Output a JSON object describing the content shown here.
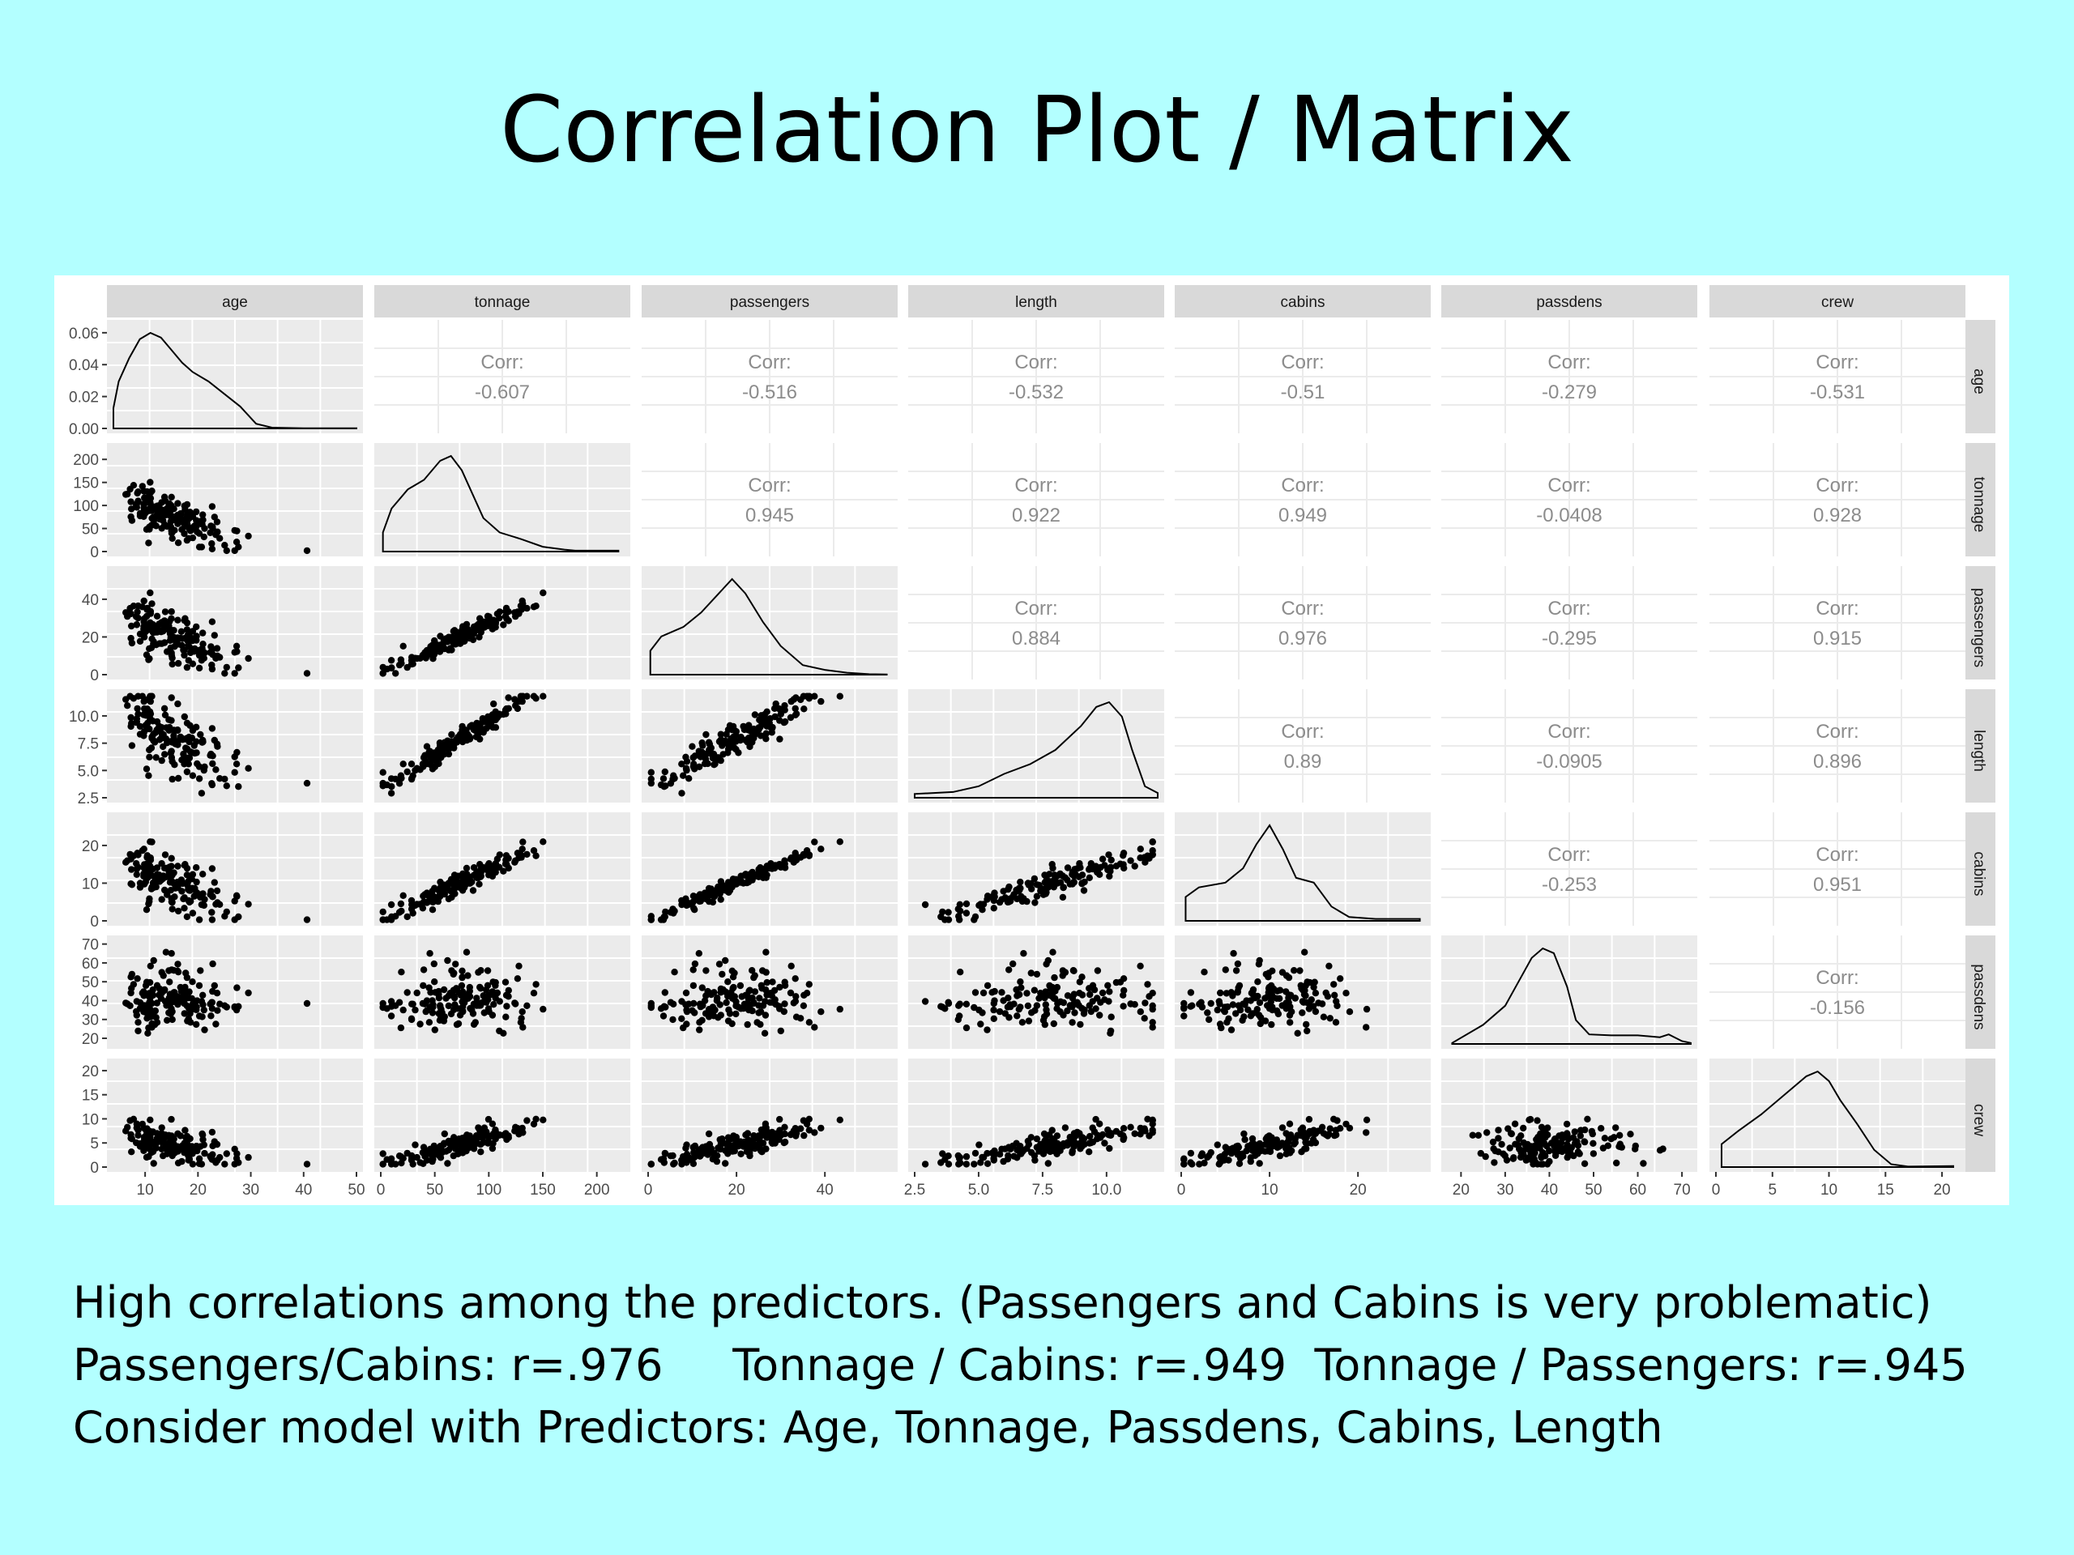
{
  "slide": {
    "title": "Correlation Plot / Matrix",
    "notes": [
      "High correlations among the predictors. (Passengers and Cabins is very problematic)",
      "Passengers/Cabins: r=.976     Tonnage / Cabins: r=.949  Tonnage / Passengers: r=.945",
      "Consider model with Predictors: Age, Tonnage, Passdens, Cabins, Length"
    ]
  },
  "colors": {
    "background": "#b3ffff",
    "strip": "#d9d9d9",
    "panel_grey": "#ebebeb",
    "grid_white": "#ffffff",
    "point": "#000000",
    "corr_text": "#8c8c8c"
  },
  "chart_data": {
    "type": "scatter",
    "variables": [
      "age",
      "tonnage",
      "passengers",
      "length",
      "cabins",
      "passdens",
      "crew"
    ],
    "axes": {
      "age": {
        "range": [
          4,
          50
        ],
        "ticks": [
          10,
          20,
          30,
          40,
          50
        ],
        "ytick_labels": [
          "0.00",
          "0.02",
          "0.04",
          "0.06"
        ],
        "ytick_values": [
          0.0,
          0.02,
          0.04,
          0.06
        ]
      },
      "tonnage": {
        "range": [
          0,
          225
        ],
        "ticks": [
          0,
          50,
          100,
          150,
          200
        ]
      },
      "passengers": {
        "range": [
          0,
          55
        ],
        "ticks": [
          0,
          20,
          40
        ]
      },
      "length": {
        "range": [
          2.5,
          12
        ],
        "ticks": [
          2.5,
          5.0,
          7.5,
          10.0
        ],
        "tick_labels": [
          "2.5",
          "5.0",
          "7.5",
          "10.0"
        ]
      },
      "cabins": {
        "range": [
          0,
          27.5
        ],
        "ticks": [
          0,
          10,
          20
        ]
      },
      "passdens": {
        "range": [
          17,
          72
        ],
        "ticks": [
          20,
          30,
          40,
          50,
          60,
          70
        ]
      },
      "crew": {
        "range": [
          0,
          21.5
        ],
        "ticks": [
          0,
          5,
          10,
          15,
          20
        ]
      }
    },
    "correlations": {
      "label": "Corr:",
      "age-tonnage": "-0.607",
      "age-passengers": "-0.516",
      "age-length": "-0.532",
      "age-cabins": "-0.51",
      "age-passdens": "-0.279",
      "age-crew": "-0.531",
      "tonnage-passengers": "0.945",
      "tonnage-length": "0.922",
      "tonnage-cabins": "0.949",
      "tonnage-passdens": "-0.0408",
      "tonnage-crew": "0.928",
      "passengers-length": "0.884",
      "passengers-cabins": "0.976",
      "passengers-passdens": "-0.295",
      "passengers-crew": "0.915",
      "length-cabins": "0.89",
      "length-passdens": "-0.0905",
      "length-crew": "0.896",
      "cabins-passdens": "-0.253",
      "cabins-crew": "0.951",
      "passdens-crew": "-0.156"
    },
    "densities": {
      "age": [
        [
          4,
          0.013
        ],
        [
          5,
          0.03
        ],
        [
          7,
          0.045
        ],
        [
          9,
          0.057
        ],
        [
          11,
          0.061
        ],
        [
          13,
          0.058
        ],
        [
          15,
          0.05
        ],
        [
          17,
          0.042
        ],
        [
          19,
          0.036
        ],
        [
          22,
          0.03
        ],
        [
          25,
          0.022
        ],
        [
          28,
          0.014
        ],
        [
          31,
          0.003
        ],
        [
          34,
          0.0005
        ],
        [
          40,
          0.0001
        ],
        [
          50,
          0.0001
        ]
      ],
      "tonnage": [
        [
          2,
          0.2
        ],
        [
          10,
          0.45
        ],
        [
          25,
          0.65
        ],
        [
          40,
          0.75
        ],
        [
          55,
          0.95
        ],
        [
          65,
          1.0
        ],
        [
          75,
          0.85
        ],
        [
          85,
          0.6
        ],
        [
          95,
          0.35
        ],
        [
          110,
          0.2
        ],
        [
          130,
          0.13
        ],
        [
          150,
          0.05
        ],
        [
          170,
          0.02
        ],
        [
          180,
          0.01
        ],
        [
          220,
          0.01
        ]
      ],
      "passengers": [
        [
          0.5,
          0.25
        ],
        [
          3,
          0.4
        ],
        [
          8,
          0.5
        ],
        [
          12,
          0.65
        ],
        [
          16,
          0.85
        ],
        [
          19,
          1.0
        ],
        [
          22,
          0.85
        ],
        [
          26,
          0.55
        ],
        [
          30,
          0.3
        ],
        [
          35,
          0.1
        ],
        [
          40,
          0.05
        ],
        [
          45,
          0.02
        ],
        [
          50,
          0.005
        ],
        [
          54,
          0.002
        ]
      ],
      "length": [
        [
          2.5,
          0.04
        ],
        [
          4,
          0.06
        ],
        [
          5,
          0.12
        ],
        [
          6,
          0.25
        ],
        [
          7,
          0.35
        ],
        [
          8,
          0.5
        ],
        [
          9,
          0.75
        ],
        [
          9.6,
          0.95
        ],
        [
          10.1,
          1.0
        ],
        [
          10.6,
          0.85
        ],
        [
          11,
          0.5
        ],
        [
          11.5,
          0.12
        ],
        [
          12,
          0.05
        ]
      ],
      "cabins": [
        [
          0.5,
          0.25
        ],
        [
          2,
          0.35
        ],
        [
          5,
          0.4
        ],
        [
          7,
          0.55
        ],
        [
          8.5,
          0.8
        ],
        [
          10,
          1.0
        ],
        [
          11.5,
          0.75
        ],
        [
          13,
          0.45
        ],
        [
          15,
          0.4
        ],
        [
          17,
          0.15
        ],
        [
          19,
          0.04
        ],
        [
          22,
          0.02
        ],
        [
          27,
          0.02
        ]
      ],
      "passdens": [
        [
          18,
          0.01
        ],
        [
          25,
          0.2
        ],
        [
          30,
          0.4
        ],
        [
          33,
          0.65
        ],
        [
          36,
          0.9
        ],
        [
          38.5,
          1.0
        ],
        [
          41,
          0.95
        ],
        [
          44,
          0.6
        ],
        [
          46,
          0.25
        ],
        [
          49,
          0.1
        ],
        [
          54,
          0.09
        ],
        [
          60,
          0.09
        ],
        [
          65,
          0.07
        ],
        [
          67,
          0.1
        ],
        [
          70,
          0.03
        ],
        [
          72,
          0.01
        ]
      ],
      "crew": [
        [
          0.5,
          0.24
        ],
        [
          2,
          0.38
        ],
        [
          4,
          0.55
        ],
        [
          6,
          0.75
        ],
        [
          8,
          0.95
        ],
        [
          9,
          1.0
        ],
        [
          10,
          0.9
        ],
        [
          11,
          0.7
        ],
        [
          12.5,
          0.45
        ],
        [
          14,
          0.18
        ],
        [
          15.5,
          0.03
        ],
        [
          17,
          0.005
        ],
        [
          21,
          0.01
        ]
      ]
    }
  }
}
